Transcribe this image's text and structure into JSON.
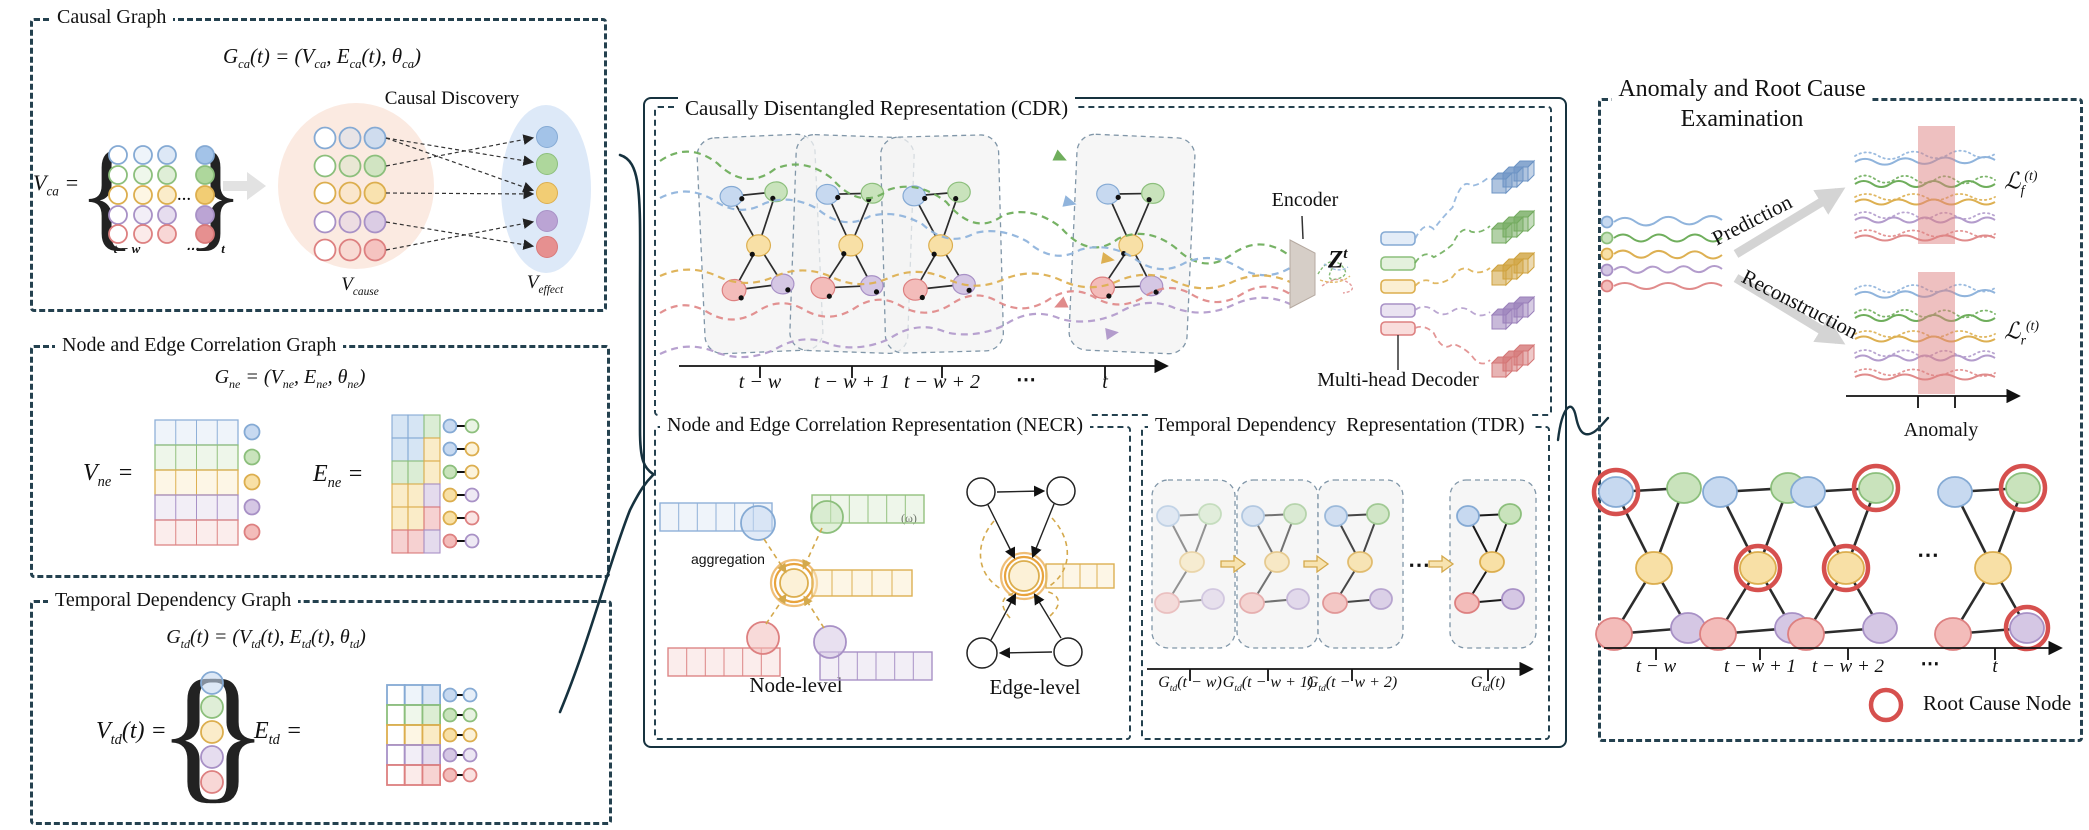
{
  "figure": {
    "symbols": {
      "brace_l": "{",
      "brace_r": "}"
    },
    "left": {
      "causal": {
        "title": "Causal Graph",
        "formula": "G_{ca}(t) = (V_{ca}, E_{ca}(t), θ_{ca})",
        "discovery": "Causal Discovery",
        "v_ca": "V_{ca} =",
        "grid_dots": "…",
        "axis": {
          "start": "t − w",
          "dots": "⋯",
          "end": "t"
        },
        "v_cause": "V_{cause}",
        "v_effect": "V_{effect}"
      },
      "ne": {
        "title": "Node and Edge Correlation Graph",
        "formula": "G_{ne} = (V_{ne}, E_{ne}, θ_{ne})",
        "v_ne": "V_{ne} =",
        "e_ne": "E_{ne} ="
      },
      "td": {
        "title": "Temporal Dependency Graph",
        "formula": "G_{td}(t) = (V_{td}(t), E_{td}(t), θ_{td})",
        "v_td": "V_{td}(t) =",
        "e_td": "E_{td} ="
      }
    },
    "cdr": {
      "title": "Causally Disentangled Representation (CDR)",
      "encoder": "Encoder",
      "latent": "Z^{t}",
      "decoder": "Multi-head Decoder",
      "timeline": [
        "t − w",
        "t − w + 1",
        "t − w + 2",
        "⋯",
        "t"
      ]
    },
    "necr": {
      "title": "Node and Edge Correlation Representation (NECR)",
      "aggregation": "aggregation",
      "omega": "(ω)",
      "node_level": "Node-level",
      "edge_level": "Edge-level"
    },
    "tdr": {
      "title": "Temporal Dependency  Representation (TDR)",
      "dots": "⋯",
      "timeline": [
        "G_{td}(t − w)",
        "G_{td}(t − w + 1)",
        "G_{td}(t − w + 2)",
        "G_{td}(t)"
      ]
    },
    "right": {
      "title1": "Anomaly and Root Cause",
      "title2": "Examination",
      "prediction": "Prediction",
      "reconstruction": "Reconstruction",
      "loss_prediction": "ℒ_{f}^{(t)}",
      "loss_reconstruction": "ℒ_{r}^{(t)}",
      "anomaly": "Anomaly",
      "graph_dots": "⋯",
      "timeline": [
        "t − w",
        "t − w + 1",
        "t − w + 2",
        "⋯",
        "t"
      ],
      "legend_root_cause": "Root Cause Node"
    }
  }
}
